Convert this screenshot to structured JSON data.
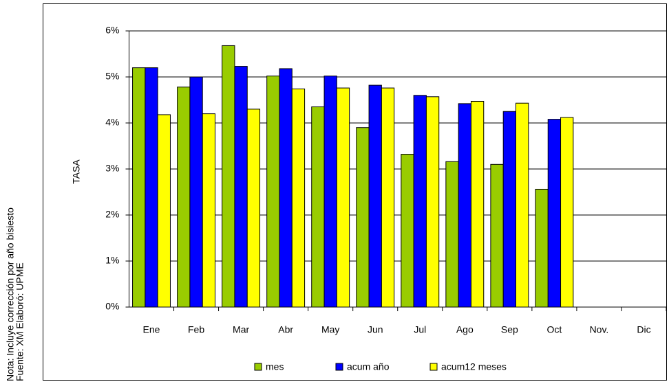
{
  "chart_data": {
    "type": "bar",
    "y_label": "TASA",
    "notes": [
      "Nota:  Incluye corrección por año bisiesto",
      "Fuente:  XM  Elaboró:  UPME"
    ],
    "categories": [
      "Ene",
      "Feb",
      "Mar",
      "Abr",
      "May",
      "Jun",
      "Jul",
      "Ago",
      "Sep",
      "Oct",
      "Nov.",
      "Dic"
    ],
    "series": [
      {
        "name": "mes",
        "color": "#99cc00",
        "values": [
          5.2,
          4.78,
          5.68,
          5.02,
          4.35,
          3.9,
          3.32,
          3.16,
          3.1,
          2.56,
          null,
          null
        ]
      },
      {
        "name": "acum año",
        "color": "#0000ff",
        "values": [
          5.2,
          5.0,
          5.23,
          5.18,
          5.02,
          4.82,
          4.6,
          4.42,
          4.25,
          4.08,
          null,
          null
        ]
      },
      {
        "name": "acum12 meses",
        "color": "#ffff00",
        "values": [
          4.18,
          4.2,
          4.3,
          4.74,
          4.76,
          4.76,
          4.57,
          4.47,
          4.43,
          4.12,
          null,
          null
        ]
      }
    ],
    "ylim": [
      0,
      6
    ],
    "yticks": [
      {
        "value": 0,
        "label": "0%"
      },
      {
        "value": 1,
        "label": "1%"
      },
      {
        "value": 2,
        "label": "2%"
      },
      {
        "value": 3,
        "label": "3%"
      },
      {
        "value": 4,
        "label": "4%"
      },
      {
        "value": 5,
        "label": "5%"
      },
      {
        "value": 6,
        "label": "6%"
      }
    ],
    "grid": true,
    "legend": "bottom"
  }
}
